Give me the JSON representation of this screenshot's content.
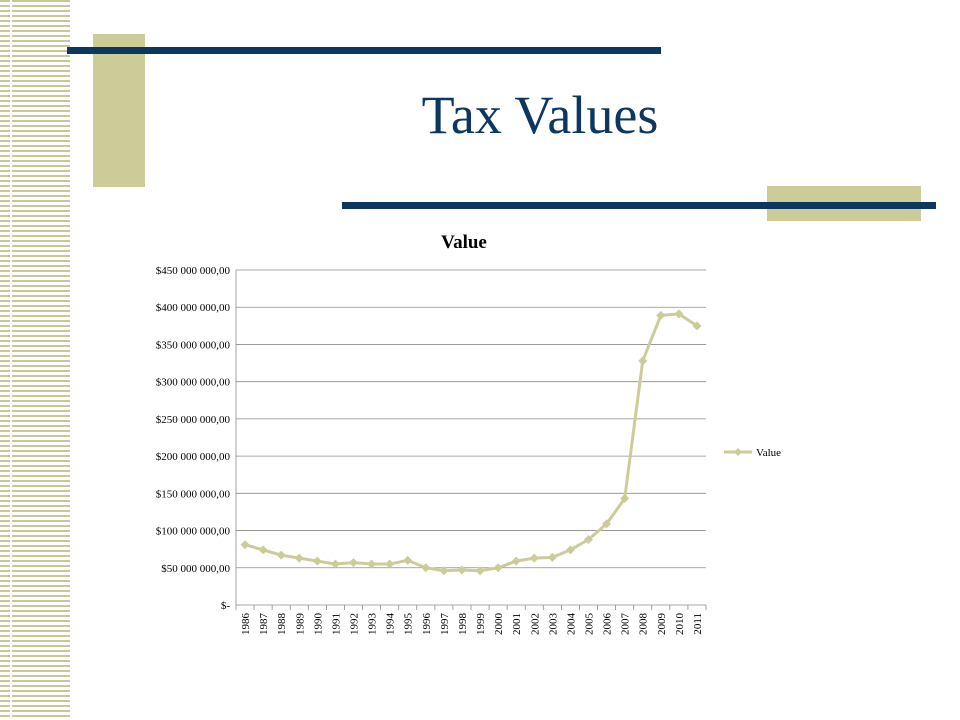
{
  "slide": {
    "title": "Tax Values",
    "colors": {
      "title": "#0c3761",
      "accent": "#cccc99",
      "bar": "#0c3761",
      "series": "#cccc99"
    }
  },
  "chart_data": {
    "type": "line",
    "title": "Value",
    "xlabel": "",
    "ylabel": "",
    "ylim": [
      0,
      450000000
    ],
    "y_ticks": [
      0,
      50000000,
      100000000,
      150000000,
      200000000,
      250000000,
      300000000,
      350000000,
      400000000,
      450000000
    ],
    "y_tick_labels": [
      "$-",
      "$50 000 000,00",
      "$100 000 000,00",
      "$150 000 000,00",
      "$200 000 000,00",
      "$250 000 000,00",
      "$300 000 000,00",
      "$350 000 000,00",
      "$400 000 000,00",
      "$450 000 000,00"
    ],
    "grid": true,
    "legend": "right",
    "categories": [
      "1986",
      "1987",
      "1988",
      "1989",
      "1990",
      "1991",
      "1992",
      "1993",
      "1994",
      "1995",
      "1996",
      "1997",
      "1998",
      "1999",
      "2000",
      "2001",
      "2002",
      "2003",
      "2004",
      "2005",
      "2006",
      "2007",
      "2008",
      "2009",
      "2010",
      "2011"
    ],
    "series": [
      {
        "name": "Value",
        "color": "#cccc99",
        "values": [
          81000000,
          74000000,
          67000000,
          63000000,
          59000000,
          55000000,
          57000000,
          55000000,
          55000000,
          60000000,
          50000000,
          46000000,
          47000000,
          46000000,
          50000000,
          59000000,
          63000000,
          64000000,
          74000000,
          88000000,
          109000000,
          143000000,
          328000000,
          389000000,
          391000000,
          375000000
        ]
      }
    ]
  }
}
